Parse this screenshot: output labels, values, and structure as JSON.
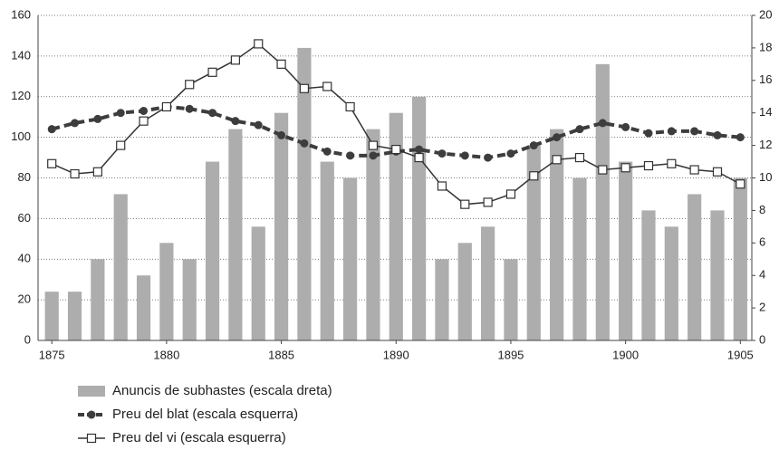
{
  "chart_data": {
    "type": "combo",
    "x": [
      1875,
      1876,
      1877,
      1878,
      1879,
      1880,
      1881,
      1882,
      1883,
      1884,
      1885,
      1886,
      1887,
      1888,
      1889,
      1890,
      1891,
      1892,
      1893,
      1894,
      1895,
      1896,
      1897,
      1898,
      1899,
      1900,
      1901,
      1902,
      1903,
      1904,
      1905
    ],
    "xlim": [
      1874.4,
      1905.5
    ],
    "xticks": [
      1875,
      1880,
      1885,
      1890,
      1895,
      1900,
      1905
    ],
    "ylim": [
      0,
      160
    ],
    "yticks": [
      0,
      20,
      40,
      60,
      80,
      100,
      120,
      140,
      160
    ],
    "y2lim": [
      0,
      20
    ],
    "y2ticks": [
      0,
      2,
      4,
      6,
      8,
      10,
      12,
      14,
      16,
      18,
      20
    ],
    "grid": true,
    "series": [
      {
        "name": "Anuncis de subhastes (escala dreta)",
        "type": "bar",
        "axis": "y2",
        "color": "#adadad",
        "values": [
          3,
          3,
          5,
          9,
          4,
          6,
          5,
          11,
          13,
          7,
          14,
          18,
          11,
          10,
          13,
          14,
          15,
          5,
          6,
          7,
          5,
          12,
          13,
          10,
          17,
          11,
          8,
          7,
          9,
          8,
          10
        ]
      },
      {
        "name": "Preu del blat (escala esquerra)",
        "type": "line",
        "dashed": true,
        "marker": "circle",
        "color": "#3d3d3d",
        "values": [
          104,
          107,
          109,
          112,
          113,
          115,
          114,
          112,
          108,
          106,
          101,
          97,
          93,
          91,
          91,
          93,
          94,
          92,
          91,
          90,
          92,
          96,
          100,
          104,
          107,
          105,
          102,
          103,
          103,
          101,
          100
        ]
      },
      {
        "name": "Preu del vi (escala esquerra)",
        "type": "line",
        "dashed": false,
        "marker": "square",
        "color": "#333333",
        "values": [
          87,
          82,
          83,
          96,
          108,
          115,
          126,
          132,
          138,
          146,
          136,
          124,
          125,
          115,
          96,
          94,
          90,
          76,
          67,
          68,
          72,
          81,
          89,
          90,
          84,
          85,
          86,
          87,
          84,
          83,
          77
        ]
      }
    ]
  }
}
